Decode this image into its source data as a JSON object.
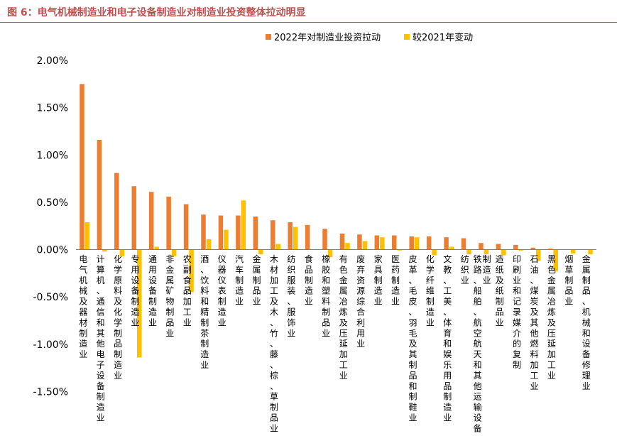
{
  "figure_title": "图 6：电气机械制造业和电子设备制造业对制造业投资整体拉动明显",
  "colors": {
    "series_2022": "#ed7d31",
    "series_change": "#ffc000",
    "title": "#c0504d"
  },
  "chart_data": {
    "type": "bar",
    "title": "",
    "xlabel": "",
    "ylabel": "",
    "ylim": [
      -0.015,
      0.02
    ],
    "y_ticks": [
      0.02,
      0.015,
      0.01,
      0.005,
      0.0,
      -0.005,
      -0.01,
      -0.015
    ],
    "y_tick_labels": [
      "2.00%",
      "1.50%",
      "1.00%",
      "0.50%",
      "0.00%",
      "-0.50%",
      "-1.00%",
      "-1.50%"
    ],
    "legend_position": "top-right",
    "grid": false,
    "categories": [
      "电气机械及器材制造业",
      "计算机、通信和其他电子设备制造业",
      "化学原料及化学制品制造业",
      "专用设备制造业",
      "通用设备制造业",
      "非金属矿物制品业",
      "农副食品加工业",
      "酒、饮料和精制茶制造业",
      "仪器仪表制造业",
      "汽车制造业",
      "金属制品业",
      "木材加工及木、竹、藤、棕、草制品业",
      "纺织服装、服饰业",
      "食品制造业",
      "橡胶和塑料制品业",
      "有色金属冶炼及压延加工业",
      "废弃资源综合利用业",
      "家具制造业",
      "医药制造业",
      "皮革、毛皮、羽毛及其制品和制鞋业",
      "化学纤维制造业",
      "文教、工美、体育和娱乐用品制造业",
      "纺织业",
      "铁路、船舶、航空航天和其他运输设备制造业",
      "造纸及纸制品业",
      "印刷业和记录媒介的复制",
      "石油、煤炭及其他燃料加工业",
      "黑色金属冶炼及压延加工业",
      "烟草制品业",
      "金属制品、机械和设备修理业"
    ],
    "series": [
      {
        "name": "2022年对制造业投资拉动",
        "values": [
          0.0175,
          0.0116,
          0.0081,
          0.0067,
          0.0061,
          0.0056,
          0.0048,
          0.0037,
          0.0036,
          0.0036,
          0.0035,
          0.0031,
          0.0029,
          0.0026,
          0.0022,
          0.0017,
          0.0016,
          0.0015,
          0.0015,
          0.0014,
          0.0014,
          0.0013,
          0.0012,
          0.0007,
          0.0006,
          0.0005,
          0.0002,
          0.0001,
          0.0,
          0.0
        ]
      },
      {
        "name": "较2021年变动",
        "values": [
          0.0029,
          -0.0002,
          -0.0007,
          -0.0114,
          0.0003,
          -0.0007,
          -0.0045,
          0.0011,
          0.0021,
          0.0052,
          -0.0005,
          0.0006,
          0.0024,
          0.0,
          -0.0008,
          0.0007,
          0.0009,
          0.0013,
          -0.0001,
          0.0013,
          -0.0006,
          0.0003,
          -0.0005,
          -0.0005,
          -0.0006,
          -0.0001,
          -0.0012,
          -0.0023,
          -0.0004,
          -0.0005
        ]
      }
    ]
  }
}
